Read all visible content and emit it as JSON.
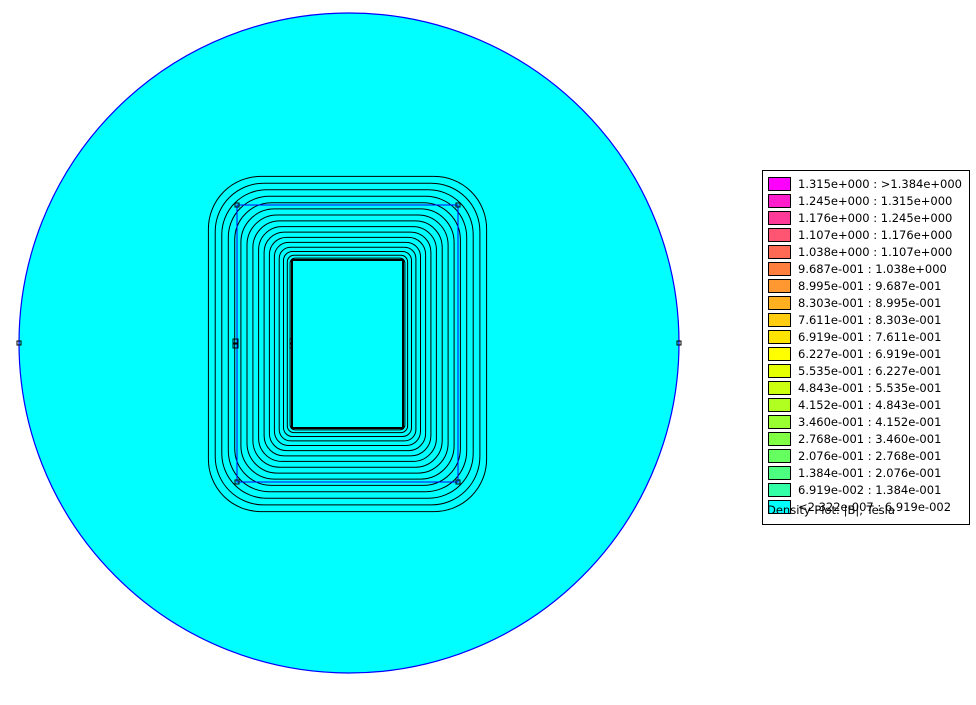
{
  "plot": {
    "background_color": "#00ffff",
    "boundary_color": "#0000ff",
    "contour_color": "#000000"
  },
  "legend": {
    "caption": "Density Plot: |B|, Tesla",
    "entries": [
      {
        "range": "1.315e+000 : >1.384e+000",
        "color": "#ff00ff"
      },
      {
        "range": "1.245e+000 : 1.315e+000",
        "color": "#ff1dcc"
      },
      {
        "range": "1.176e+000 : 1.245e+000",
        "color": "#ff3a99"
      },
      {
        "range": "1.107e+000 : 1.176e+000",
        "color": "#ff5573"
      },
      {
        "range": "1.038e+000 : 1.107e+000",
        "color": "#ff6a55"
      },
      {
        "range": "9.687e-001 : 1.038e+000",
        "color": "#ff7f3f"
      },
      {
        "range": "8.995e-001 : 9.687e-001",
        "color": "#ff9830"
      },
      {
        "range": "8.303e-001 : 8.995e-001",
        "color": "#ffb020"
      },
      {
        "range": "7.611e-001 : 8.303e-001",
        "color": "#ffcc10"
      },
      {
        "range": "6.919e-001 : 7.611e-001",
        "color": "#ffe400"
      },
      {
        "range": "6.227e-001 : 6.919e-001",
        "color": "#ffff00"
      },
      {
        "range": "5.535e-001 : 6.227e-001",
        "color": "#e6ff00"
      },
      {
        "range": "4.843e-001 : 5.535e-001",
        "color": "#ccff10"
      },
      {
        "range": "4.152e-001 : 4.843e-001",
        "color": "#b0ff20"
      },
      {
        "range": "3.460e-001 : 4.152e-001",
        "color": "#99ff30"
      },
      {
        "range": "2.768e-001 : 3.460e-001",
        "color": "#80ff45"
      },
      {
        "range": "2.076e-001 : 2.768e-001",
        "color": "#66ff60"
      },
      {
        "range": "1.384e-001 : 2.076e-001",
        "color": "#4cff80"
      },
      {
        "range": "6.919e-002 : 1.384e-001",
        "color": "#33ffa6"
      },
      {
        "range": "<2.322e-007 : 6.919e-002",
        "color": "#00ffff"
      }
    ]
  }
}
